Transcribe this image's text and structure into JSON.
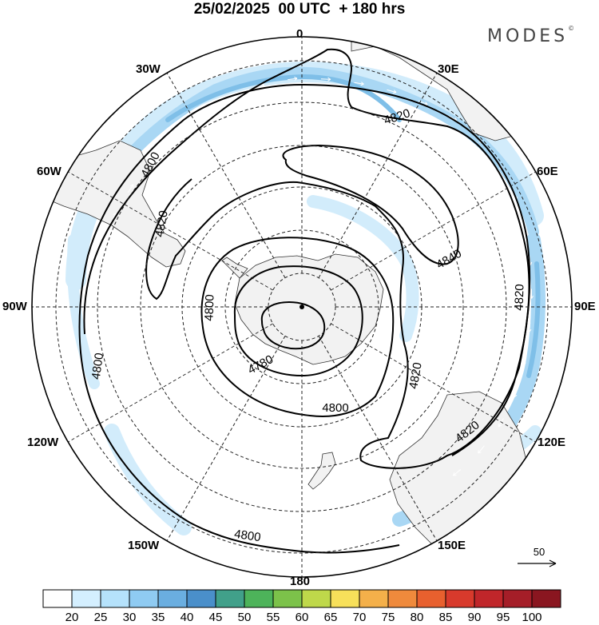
{
  "title": "25/02/2025  00 UTC  + 180 hrs",
  "brand": "MODES",
  "brand_mark": "©",
  "longitude_labels": {
    "lon_0": "0",
    "lon_30e": "30E",
    "lon_60e": "60E",
    "lon_90e": "90E",
    "lon_120e": "120E",
    "lon_150e": "150E",
    "lon_180": "180",
    "lon_150w": "150W",
    "lon_120w": "120W",
    "lon_90w": "90W",
    "lon_60w": "60W",
    "lon_30w": "30W"
  },
  "contour_labels": [
    "4820",
    "4800",
    "4820",
    "4840",
    "4800",
    "4780",
    "4800",
    "4820",
    "4820",
    "4820",
    "4800",
    "4800"
  ],
  "reference_vector": "50",
  "colorbar": {
    "labels": [
      "20",
      "25",
      "30",
      "35",
      "40",
      "45",
      "50",
      "55",
      "60",
      "65",
      "70",
      "75",
      "80",
      "85",
      "90",
      "95",
      "100"
    ],
    "colors": [
      "#ffffff",
      "#d4efff",
      "#b5e2fb",
      "#8fcbf2",
      "#6aaee0",
      "#4a8fca",
      "#41a08a",
      "#4db35a",
      "#7cc24a",
      "#bfd84a",
      "#f7e05a",
      "#f4b04a",
      "#ef8a3c",
      "#e8602e",
      "#d83a2c",
      "#c0262a",
      "#a51e28",
      "#8a1620"
    ]
  },
  "colors": {
    "land": "#f2f2f2",
    "jet_light": "#d2ecfb",
    "jet_medium": "#a9d7f4",
    "jet_strong": "#7fbfe8",
    "contour": "#000000",
    "grid": "#222222"
  }
}
